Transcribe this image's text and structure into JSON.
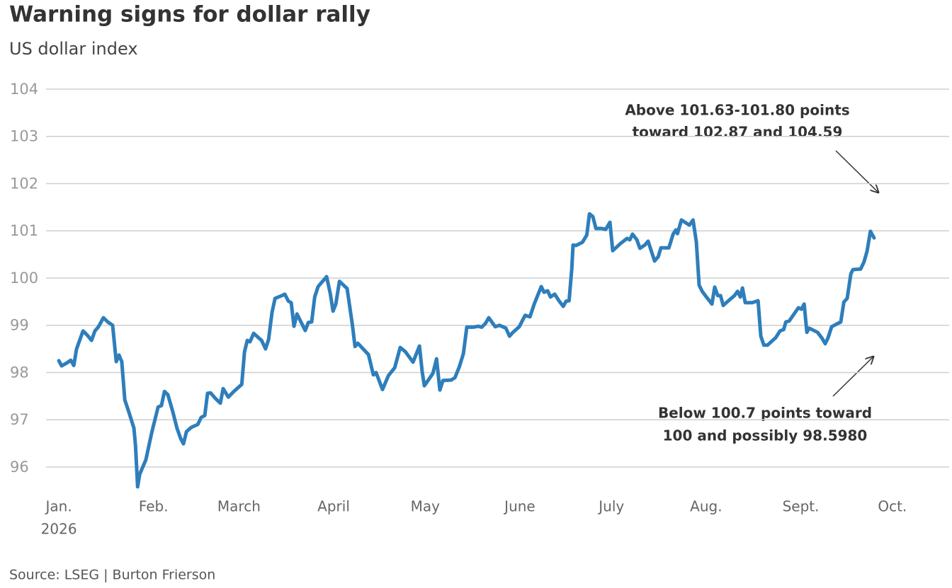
{
  "chart_data": {
    "type": "line",
    "title": "Warning signs for dollar rally",
    "subtitle": "US dollar index",
    "source": "Source: LSEG | Burton Frierson",
    "x_year_label": "2026",
    "annotations": [
      [
        "Above 101.63-101.80 points",
        "toward 102.87 and 104.59"
      ],
      [
        "Below 100.7 points toward",
        "100 and possibly 98.5980"
      ]
    ],
    "grid": true,
    "xlim": [
      -4.2,
      291.6
    ],
    "xticks": [
      {
        "value": 0,
        "label": "Jan."
      },
      {
        "value": 31,
        "label": "Feb."
      },
      {
        "value": 59,
        "label": "March"
      },
      {
        "value": 90,
        "label": "April"
      },
      {
        "value": 120,
        "label": "May"
      },
      {
        "value": 151,
        "label": "June"
      },
      {
        "value": 181,
        "label": "July"
      },
      {
        "value": 212,
        "label": "Aug."
      },
      {
        "value": 243,
        "label": "Sept."
      },
      {
        "value": 273,
        "label": "Oct."
      }
    ],
    "ylim": [
      95.4,
      104
    ],
    "yticks": [
      96,
      97,
      98,
      99,
      100,
      101,
      102,
      103,
      104
    ],
    "series": [
      {
        "name": "US dollar index",
        "color": "#2e7ebc",
        "x": [
          0,
          0.9,
          2.8,
          3.9,
          4.9,
          5.8,
          7.9,
          9.3,
          10.7,
          11.8,
          13.0,
          14.6,
          16.0,
          17.6,
          18.8,
          19.7,
          20.6,
          21.6,
          23.0,
          24.6,
          25.1,
          25.8,
          26.5,
          28.5,
          30.4,
          32.5,
          33.6,
          34.6,
          35.7,
          37.4,
          38.7,
          39.9,
          40.8,
          41.8,
          43.4,
          45.5,
          46.6,
          47.8,
          48.7,
          49.7,
          51.3,
          52.9,
          53.8,
          55.5,
          57.3,
          59.9,
          60.8,
          61.7,
          62.6,
          63.8,
          66.4,
          67.7,
          68.7,
          69.8,
          70.8,
          73.1,
          74.0,
          75.2,
          76.1,
          77.0,
          78.0,
          80.7,
          81.7,
          82.8,
          83.8,
          84.9,
          87.7,
          88.9,
          89.8,
          90.7,
          91.9,
          94.4,
          96.1,
          97.0,
          97.9,
          101.4,
          103.0,
          103.9,
          106.0,
          107.9,
          109.0,
          110.0,
          111.8,
          113.5,
          116.0,
          118.1,
          119.0,
          119.7,
          122.5,
          123.7,
          124.8,
          125.8,
          128.5,
          129.7,
          131.1,
          132.5,
          133.6,
          135.7,
          137.4,
          138.5,
          139.7,
          140.8,
          142.9,
          144.3,
          146.4,
          147.6,
          148.7,
          150.8,
          152.7,
          154.3,
          155.7,
          158.0,
          158.9,
          160.1,
          161.0,
          162.4,
          163.8,
          165.2,
          166.1,
          167.1,
          168.0,
          168.4,
          169.4,
          171.5,
          172.9,
          173.8,
          174.9,
          175.9,
          177.9,
          179.1,
          180.5,
          181.4,
          183.9,
          186.1,
          187.0,
          187.9,
          189.3,
          190.3,
          191.9,
          193.0,
          195.1,
          196.3,
          197.2,
          199.8,
          201.2,
          202.1,
          202.6,
          203.9,
          206.5,
          207.7,
          208.8,
          209.7,
          210.7,
          212.1,
          213.9,
          214.8,
          215.8,
          216.7,
          217.6,
          219.3,
          221.3,
          222.3,
          223.2,
          223.9,
          224.8,
          227.1,
          229.0,
          229.9,
          230.9,
          232.1,
          234.8,
          236.2,
          237.4,
          238.1,
          239.2,
          242.2,
          243.2,
          244.1,
          245.0,
          245.7,
          248.5,
          249.9,
          251.0,
          251.9,
          253.1,
          256.1,
          257.1,
          258.2,
          259.4,
          260.1,
          262.6,
          263.7,
          264.7,
          265.8,
          267.0
        ],
        "values": [
          98.25,
          98.14,
          98.21,
          98.26,
          98.15,
          98.5,
          98.88,
          98.79,
          98.68,
          98.88,
          98.97,
          99.16,
          99.07,
          99.0,
          98.23,
          98.37,
          98.23,
          97.42,
          97.15,
          96.82,
          96.45,
          95.58,
          95.85,
          96.15,
          96.72,
          97.27,
          97.3,
          97.6,
          97.53,
          97.15,
          96.82,
          96.6,
          96.49,
          96.75,
          96.84,
          96.9,
          97.05,
          97.09,
          97.56,
          97.57,
          97.45,
          97.35,
          97.66,
          97.48,
          97.6,
          97.75,
          98.44,
          98.68,
          98.65,
          98.83,
          98.68,
          98.5,
          98.7,
          99.27,
          99.57,
          99.63,
          99.66,
          99.51,
          99.48,
          98.98,
          99.24,
          98.89,
          99.06,
          99.07,
          99.6,
          99.82,
          100.03,
          99.67,
          99.3,
          99.45,
          99.93,
          99.78,
          99.03,
          98.55,
          98.62,
          98.38,
          97.95,
          98.0,
          97.64,
          97.93,
          98.02,
          98.1,
          98.53,
          98.44,
          98.22,
          98.56,
          98.02,
          97.72,
          97.98,
          98.29,
          97.63,
          97.83,
          97.84,
          97.89,
          98.11,
          98.4,
          98.96,
          98.96,
          98.98,
          98.96,
          99.04,
          99.16,
          98.97,
          99.0,
          98.94,
          98.77,
          98.85,
          98.97,
          99.21,
          99.18,
          99.45,
          99.82,
          99.7,
          99.73,
          99.6,
          99.66,
          99.52,
          99.4,
          99.51,
          99.52,
          100.19,
          100.7,
          100.69,
          100.76,
          100.91,
          101.36,
          101.3,
          101.05,
          101.05,
          101.03,
          101.18,
          100.58,
          100.73,
          100.84,
          100.81,
          100.93,
          100.81,
          100.63,
          100.7,
          100.78,
          100.36,
          100.45,
          100.64,
          100.64,
          100.93,
          101.02,
          100.94,
          101.23,
          101.12,
          101.23,
          100.76,
          99.85,
          99.72,
          99.6,
          99.45,
          99.81,
          99.63,
          99.63,
          99.42,
          99.52,
          99.63,
          99.72,
          99.6,
          99.79,
          99.48,
          99.48,
          99.52,
          98.77,
          98.58,
          98.58,
          98.74,
          98.88,
          98.91,
          99.07,
          99.09,
          99.37,
          99.34,
          99.45,
          98.85,
          98.94,
          98.85,
          98.73,
          98.61,
          98.73,
          98.97,
          99.07,
          99.49,
          99.57,
          100.09,
          100.18,
          100.19,
          100.34,
          100.57,
          100.99,
          100.85
        ]
      }
    ]
  }
}
